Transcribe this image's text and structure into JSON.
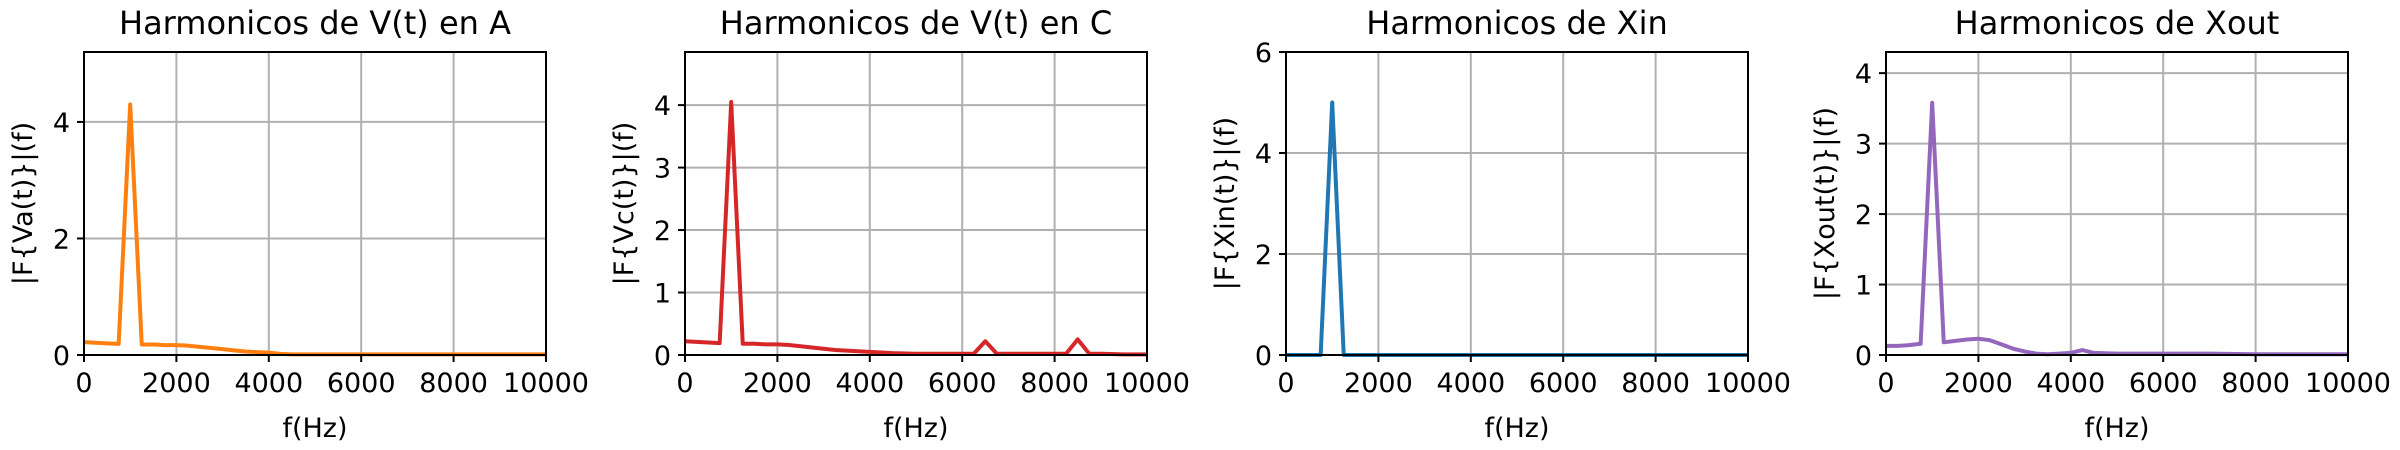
{
  "chart_data": [
    {
      "type": "line",
      "title": "Harmonicos de V(t) en A",
      "xlabel": "f(Hz)",
      "ylabel": "|F{Va(t)}|(f)",
      "xlim": [
        0,
        10000
      ],
      "ylim": [
        0,
        5.2
      ],
      "xticks": [
        0,
        2000,
        4000,
        6000,
        8000,
        10000
      ],
      "yticks": [
        0,
        2,
        4
      ],
      "grid": true,
      "color": "#ff7f0e",
      "series": [
        {
          "x": [
            0,
            250,
            500,
            750,
            1000,
            1250,
            1500,
            1750,
            2000,
            2250,
            2500,
            2750,
            3000,
            3250,
            3500,
            3750,
            4000,
            4250,
            4500,
            5000,
            6000,
            7000,
            8000,
            9000,
            10000
          ],
          "y": [
            0.22,
            0.21,
            0.2,
            0.19,
            4.3,
            0.18,
            0.18,
            0.17,
            0.17,
            0.16,
            0.14,
            0.12,
            0.1,
            0.08,
            0.06,
            0.05,
            0.04,
            0.02,
            0.01,
            0.01,
            0.01,
            0.01,
            0.01,
            0.01,
            0.01
          ]
        }
      ]
    },
    {
      "type": "line",
      "title": "Harmonicos de V(t) en C",
      "xlabel": "f(Hz)",
      "ylabel": "|F{Vc(t)}|(f)",
      "xlim": [
        0,
        10000
      ],
      "ylim": [
        0,
        4.85
      ],
      "xticks": [
        0,
        2000,
        4000,
        6000,
        8000,
        10000
      ],
      "yticks": [
        0,
        1,
        2,
        3,
        4
      ],
      "grid": true,
      "color": "#d62728",
      "series": [
        {
          "x": [
            0,
            250,
            500,
            750,
            1000,
            1250,
            1500,
            1750,
            2000,
            2250,
            2500,
            2750,
            3000,
            3250,
            3500,
            3750,
            4000,
            4250,
            4500,
            5000,
            5500,
            6000,
            6250,
            6500,
            6750,
            7000,
            7500,
            8000,
            8250,
            8500,
            8750,
            9000,
            9500,
            10000
          ],
          "y": [
            0.22,
            0.21,
            0.2,
            0.19,
            4.05,
            0.18,
            0.18,
            0.17,
            0.17,
            0.16,
            0.14,
            0.12,
            0.1,
            0.08,
            0.07,
            0.06,
            0.05,
            0.04,
            0.03,
            0.02,
            0.02,
            0.02,
            0.02,
            0.22,
            0.02,
            0.02,
            0.02,
            0.02,
            0.02,
            0.25,
            0.02,
            0.02,
            0.01,
            0.01
          ]
        }
      ]
    },
    {
      "type": "line",
      "title": "Harmonicos de Xin",
      "xlabel": "f(Hz)",
      "ylabel": "|F{Xin(t)}|(f)",
      "xlim": [
        0,
        10000
      ],
      "ylim": [
        0,
        6
      ],
      "xticks": [
        0,
        2000,
        4000,
        6000,
        8000,
        10000
      ],
      "yticks": [
        0,
        2,
        4,
        6
      ],
      "grid": true,
      "color": "#1f77b4",
      "series": [
        {
          "x": [
            0,
            250,
            500,
            750,
            1000,
            1250,
            1500,
            2000,
            3000,
            4000,
            5000,
            6000,
            7000,
            8000,
            9000,
            10000
          ],
          "y": [
            0,
            0,
            0,
            0,
            5.0,
            0,
            0,
            0,
            0,
            0,
            0,
            0,
            0,
            0,
            0,
            0
          ]
        }
      ]
    },
    {
      "type": "line",
      "title": "Harmonicos de Xout",
      "xlabel": "f(Hz)",
      "ylabel": "|F{Xout(t)}|(f)",
      "xlim": [
        0,
        10000
      ],
      "ylim": [
        0,
        4.3
      ],
      "xticks": [
        0,
        2000,
        4000,
        6000,
        8000,
        10000
      ],
      "yticks": [
        0,
        1,
        2,
        3,
        4
      ],
      "grid": true,
      "color": "#9467bd",
      "series": [
        {
          "x": [
            0,
            250,
            500,
            750,
            1000,
            1250,
            1500,
            1750,
            2000,
            2250,
            2500,
            2750,
            3000,
            3250,
            3500,
            3750,
            4000,
            4250,
            4500,
            5000,
            6000,
            7000,
            8000,
            9000,
            10000
          ],
          "y": [
            0.13,
            0.13,
            0.14,
            0.16,
            3.58,
            0.18,
            0.2,
            0.22,
            0.23,
            0.21,
            0.15,
            0.09,
            0.05,
            0.02,
            0.01,
            0.02,
            0.03,
            0.07,
            0.03,
            0.02,
            0.02,
            0.02,
            0.01,
            0.01,
            0.01
          ]
        }
      ]
    }
  ]
}
